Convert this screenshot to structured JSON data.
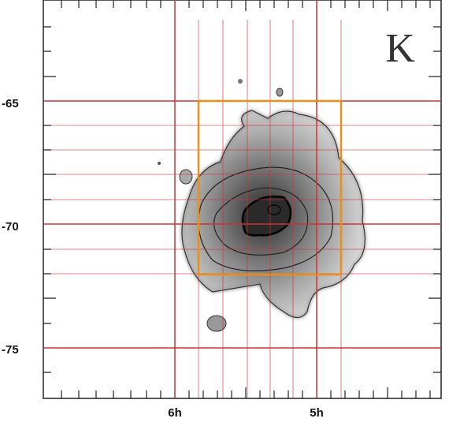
{
  "panel_label": "K",
  "y_axis": {
    "tick_labels": [
      "-65",
      "-70",
      "-75"
    ]
  },
  "x_axis": {
    "tick_labels": [
      "6h",
      "5h"
    ]
  }
}
